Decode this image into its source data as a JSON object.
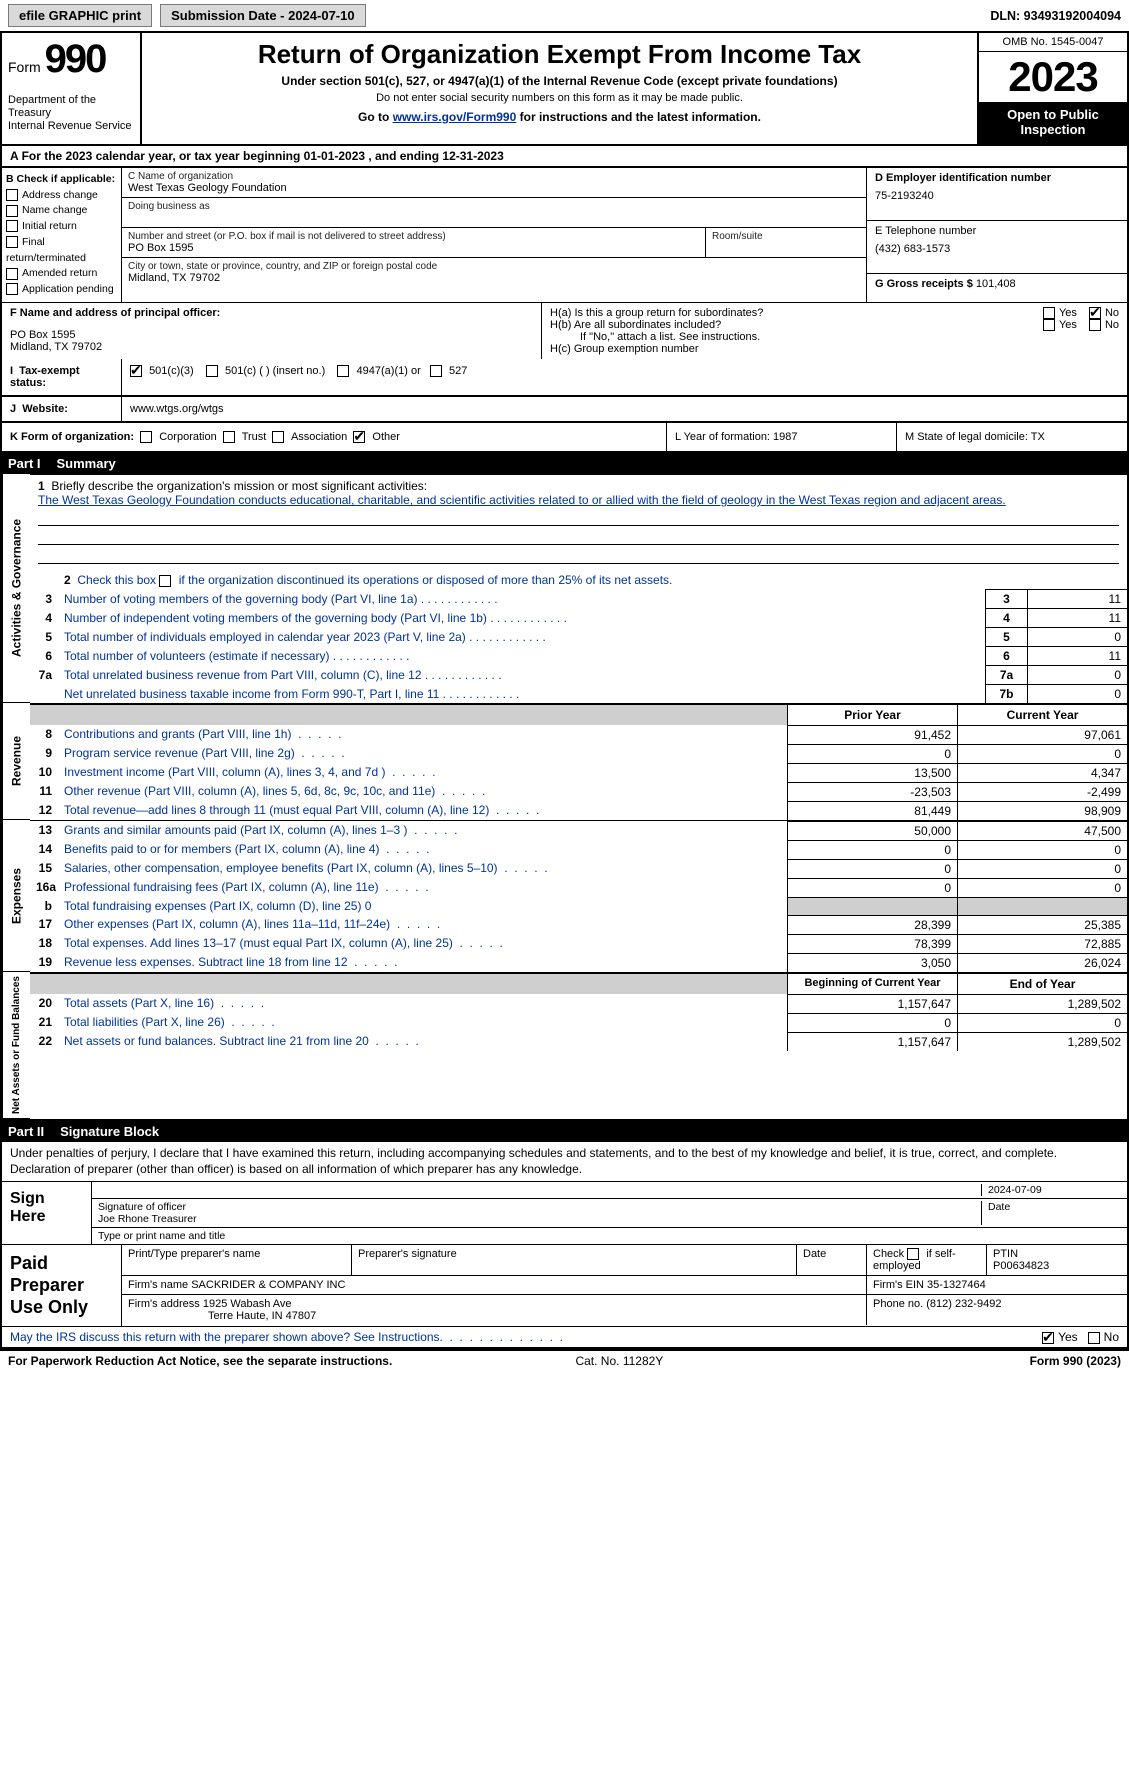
{
  "topbar": {
    "efile": "efile GRAPHIC print",
    "submission": "Submission Date - 2024-07-10",
    "dln": "DLN: 93493192004094"
  },
  "header": {
    "form_label": "Form",
    "form_num": "990",
    "dept": "Department of the Treasury",
    "irs": "Internal Revenue Service",
    "title": "Return of Organization Exempt From Income Tax",
    "sub1": "Under section 501(c), 527, or 4947(a)(1) of the Internal Revenue Code (except private foundations)",
    "sub2": "Do not enter social security numbers on this form as it may be made public.",
    "link_pre": "Go to ",
    "link": "www.irs.gov/Form990",
    "link_post": " for instructions and the latest information.",
    "omb": "OMB No. 1545-0047",
    "year": "2023",
    "open": "Open to Public Inspection"
  },
  "lineA": "For the 2023 calendar year, or tax year beginning 01-01-2023    , and ending 12-31-2023",
  "boxB": {
    "title": "B Check if applicable:",
    "items": [
      "Address change",
      "Name change",
      "Initial return",
      "Final return/terminated",
      "Amended return",
      "Application pending"
    ]
  },
  "boxC": {
    "name_label": "C Name of organization",
    "name": "West Texas Geology Foundation",
    "dba_label": "Doing business as",
    "street_label": "Number and street (or P.O. box if mail is not delivered to street address)",
    "room_label": "Room/suite",
    "street": "PO Box 1595",
    "city_label": "City or town, state or province, country, and ZIP or foreign postal code",
    "city": "Midland, TX  79702"
  },
  "boxD": {
    "ein_label": "D Employer identification number",
    "ein": "75-2193240",
    "tel_label": "E Telephone number",
    "tel": "(432) 683-1573",
    "gross_label": "G Gross receipts $",
    "gross": "101,408"
  },
  "boxF": {
    "label": "F  Name and address of principal officer:",
    "addr1": "PO Box 1595",
    "addr2": "Midland, TX  79702"
  },
  "boxH": {
    "a": "H(a)  Is this a group return for subordinates?",
    "b": "H(b)  Are all subordinates included?",
    "b_note": "If \"No,\" attach a list. See instructions.",
    "c": "H(c)  Group exemption number"
  },
  "exempt": {
    "label": "Tax-exempt status:",
    "o1": "501(c)(3)",
    "o2": "501(c) (   ) (insert no.)",
    "o3": "4947(a)(1) or",
    "o4": "527"
  },
  "website": {
    "label": "Website:",
    "url": "www.wtgs.org/wtgs"
  },
  "klm": {
    "k": "K Form of organization:",
    "k_opts": [
      "Corporation",
      "Trust",
      "Association",
      "Other"
    ],
    "l": "L Year of formation: 1987",
    "m": "M State of legal domicile: TX"
  },
  "partI": {
    "num": "Part I",
    "title": "Summary"
  },
  "sections": {
    "gov": "Activities & Governance",
    "rev": "Revenue",
    "exp": "Expenses",
    "net": "Net Assets or Fund Balances"
  },
  "mission": {
    "label": "Briefly describe the organization's mission or most significant activities:",
    "text": "The West Texas Geology Foundation conducts educational, charitable, and scientific activities related to or allied with the field of geology in the West Texas region and adjacent areas."
  },
  "line2": "Check this box     if the organization discontinued its operations or disposed of more than 25% of its net assets.",
  "gov_rows": [
    {
      "n": "3",
      "desc": "Number of voting members of the governing body (Part VI, line 1a)",
      "box": "3",
      "val": "11"
    },
    {
      "n": "4",
      "desc": "Number of independent voting members of the governing body (Part VI, line 1b)",
      "box": "4",
      "val": "11"
    },
    {
      "n": "5",
      "desc": "Total number of individuals employed in calendar year 2023 (Part V, line 2a)",
      "box": "5",
      "val": "0"
    },
    {
      "n": "6",
      "desc": "Total number of volunteers (estimate if necessary)",
      "box": "6",
      "val": "11"
    },
    {
      "n": "7a",
      "desc": "Total unrelated business revenue from Part VIII, column (C), line 12",
      "box": "7a",
      "val": "0"
    },
    {
      "n": "",
      "desc": "Net unrelated business taxable income from Form 990-T, Part I, line 11",
      "box": "7b",
      "val": "0"
    }
  ],
  "twocol_hdrs": {
    "prior": "Prior Year",
    "current": "Current Year"
  },
  "rev_rows": [
    {
      "n": "8",
      "desc": "Contributions and grants (Part VIII, line 1h)",
      "c1": "91,452",
      "c2": "97,061"
    },
    {
      "n": "9",
      "desc": "Program service revenue (Part VIII, line 2g)",
      "c1": "0",
      "c2": "0"
    },
    {
      "n": "10",
      "desc": "Investment income (Part VIII, column (A), lines 3, 4, and 7d )",
      "c1": "13,500",
      "c2": "4,347"
    },
    {
      "n": "11",
      "desc": "Other revenue (Part VIII, column (A), lines 5, 6d, 8c, 9c, 10c, and 11e)",
      "c1": "-23,503",
      "c2": "-2,499"
    },
    {
      "n": "12",
      "desc": "Total revenue—add lines 8 through 11 (must equal Part VIII, column (A), line 12)",
      "c1": "81,449",
      "c2": "98,909"
    }
  ],
  "exp_rows": [
    {
      "n": "13",
      "desc": "Grants and similar amounts paid (Part IX, column (A), lines 1–3 )",
      "c1": "50,000",
      "c2": "47,500"
    },
    {
      "n": "14",
      "desc": "Benefits paid to or for members (Part IX, column (A), line 4)",
      "c1": "0",
      "c2": "0"
    },
    {
      "n": "15",
      "desc": "Salaries, other compensation, employee benefits (Part IX, column (A), lines 5–10)",
      "c1": "0",
      "c2": "0"
    },
    {
      "n": "16a",
      "desc": "Professional fundraising fees (Part IX, column (A), line 11e)",
      "c1": "0",
      "c2": "0"
    }
  ],
  "exp_b": {
    "n": "b",
    "desc": "Total fundraising expenses (Part IX, column (D), line 25) 0"
  },
  "exp_rows2": [
    {
      "n": "17",
      "desc": "Other expenses (Part IX, column (A), lines 11a–11d, 11f–24e)",
      "c1": "28,399",
      "c2": "25,385"
    },
    {
      "n": "18",
      "desc": "Total expenses. Add lines 13–17 (must equal Part IX, column (A), line 25)",
      "c1": "78,399",
      "c2": "72,885"
    },
    {
      "n": "19",
      "desc": "Revenue less expenses. Subtract line 18 from line 12",
      "c1": "3,050",
      "c2": "26,024"
    }
  ],
  "net_hdrs": {
    "begin": "Beginning of Current Year",
    "end": "End of Year"
  },
  "net_rows": [
    {
      "n": "20",
      "desc": "Total assets (Part X, line 16)",
      "c1": "1,157,647",
      "c2": "1,289,502"
    },
    {
      "n": "21",
      "desc": "Total liabilities (Part X, line 26)",
      "c1": "0",
      "c2": "0"
    },
    {
      "n": "22",
      "desc": "Net assets or fund balances. Subtract line 21 from line 20",
      "c1": "1,157,647",
      "c2": "1,289,502"
    }
  ],
  "partII": {
    "num": "Part II",
    "title": "Signature Block"
  },
  "sig": {
    "decl": "Under penalties of perjury, I declare that I have examined this return, including accompanying schedules and statements, and to the best of my knowledge and belief, it is true, correct, and complete. Declaration of preparer (other than officer) is based on all information of which preparer has any knowledge.",
    "sign_here": "Sign Here",
    "date": "2024-07-09",
    "sig_label": "Signature of officer",
    "officer": "Joe Rhone  Treasurer",
    "type_label": "Type or print name and title"
  },
  "prep": {
    "label": "Paid Preparer Use Only",
    "r1": {
      "c1": "Print/Type preparer's name",
      "c2": "Preparer's signature",
      "c3": "Date",
      "c4a": "Check",
      "c4b": "if self-employed",
      "c5a": "PTIN",
      "c5b": "P00634823"
    },
    "r2": {
      "a": "Firm's name      SACKRIDER & COMPANY INC",
      "b": "Firm's EIN  35-1327464"
    },
    "r3": {
      "a": "Firm's address 1925 Wabash Ave",
      "a2": "Terre Haute, IN  47807",
      "b": "Phone no. (812) 232-9492"
    }
  },
  "discuss": "May the IRS discuss this return with the preparer shown above? See Instructions.",
  "footer": {
    "left": "For Paperwork Reduction Act Notice, see the separate instructions.",
    "cat": "Cat. No. 11282Y",
    "right": "Form 990 (2023)"
  },
  "yes": "Yes",
  "no": "No"
}
